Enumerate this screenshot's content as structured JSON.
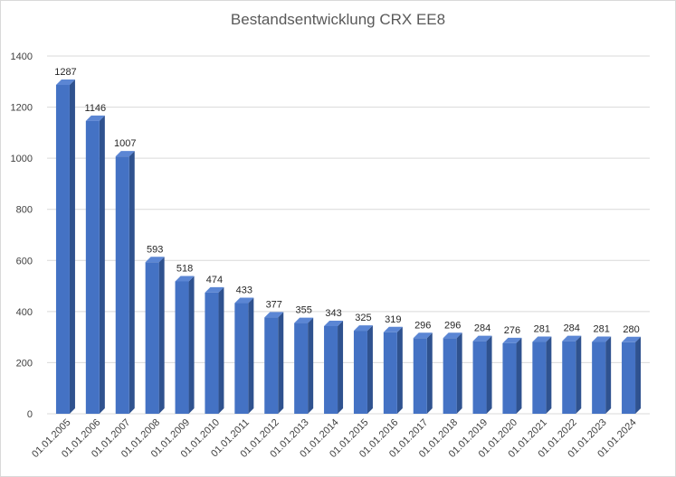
{
  "chart_data": {
    "type": "bar",
    "title": "Bestandsentwicklung CRX EE8",
    "xlabel": "",
    "ylabel": "",
    "ylim": [
      0,
      1400
    ],
    "yticks": [
      0,
      200,
      400,
      600,
      800,
      1000,
      1200,
      1400
    ],
    "grid": true,
    "style": "3d-column",
    "colors": {
      "bar_front": "#4472c4",
      "bar_side": "#2f528f",
      "bar_top": "#5b86d4",
      "grid": "#d9d9d9"
    },
    "categories": [
      "01.01.2005",
      "01.01.2006",
      "01.01.2007",
      "01.01.2008",
      "01.01.2009",
      "01.01.2010",
      "01.01.2011",
      "01.01.2012",
      "01.01.2013",
      "01.01.2014",
      "01.01.2015",
      "01.01.2016",
      "01.01.2017",
      "01.01.2018",
      "01.01.2019",
      "01.01.2020",
      "01.01.2021",
      "01.01.2022",
      "01.01.2023",
      "01.01.2024"
    ],
    "values": [
      1287,
      1146,
      1007,
      593,
      518,
      474,
      433,
      377,
      355,
      343,
      325,
      319,
      296,
      296,
      284,
      276,
      281,
      284,
      281,
      280
    ]
  }
}
